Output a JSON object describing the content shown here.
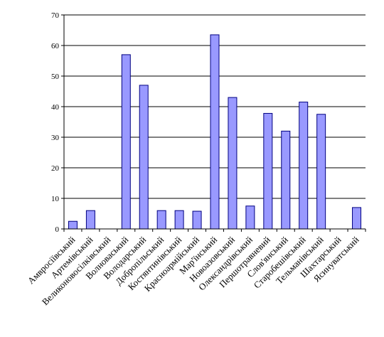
{
  "chart_data": {
    "type": "bar",
    "title": "",
    "xlabel": "",
    "ylabel": "",
    "ylim": [
      0,
      70
    ],
    "yticks": [
      0,
      10,
      20,
      30,
      40,
      50,
      60,
      70
    ],
    "grid": true,
    "legend": "none",
    "categories": [
      "Амвросіївський",
      "Артемівський",
      "Великоновосілківський",
      "Волноваський",
      "Володарський",
      "Добропільський",
      "Костянтинівський",
      "Красноармійський",
      "Мар'їнський",
      "Новоазовський",
      "Олександрівський",
      "Першотравневий",
      "Слов'янський",
      "Старобешівський",
      "Тельманівський",
      "Шахтарський",
      "Ясинуватський"
    ],
    "values": [
      2.5,
      6,
      0,
      57,
      47,
      6,
      6,
      5.8,
      63.5,
      43,
      7.5,
      37.8,
      32,
      41.5,
      37.5,
      0,
      7
    ],
    "bar_color": "#9999ff",
    "bar_stroke": "#000080",
    "grid_color": "#000000"
  }
}
